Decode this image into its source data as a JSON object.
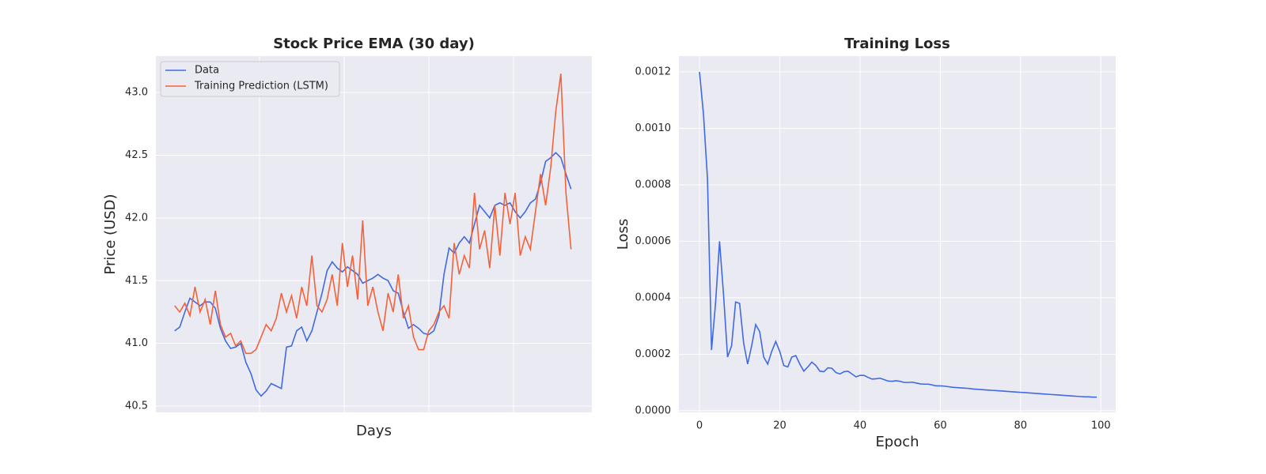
{
  "chart_data": [
    {
      "type": "line",
      "title": "Stock Price EMA (30 day)",
      "xlabel": "Days",
      "ylabel": "Price (USD)",
      "xlim": [
        -3.7,
        82.1
      ],
      "ylim": [
        40.45,
        43.29
      ],
      "yticks": [
        {
          "value": 40.5,
          "label": "40.5"
        },
        {
          "value": 41.0,
          "label": "41.0"
        },
        {
          "value": 41.5,
          "label": "41.5"
        },
        {
          "value": 42.0,
          "label": "42.0"
        },
        {
          "value": 42.5,
          "label": "42.5"
        },
        {
          "value": 43.0,
          "label": "43.0"
        }
      ],
      "grid": true,
      "legend": "upper left",
      "series": [
        {
          "name": "Data",
          "color": "#4169e1",
          "values": [
            41.1,
            41.13,
            41.25,
            41.36,
            41.33,
            41.3,
            41.33,
            41.33,
            41.28,
            41.12,
            41.02,
            40.96,
            40.97,
            41.0,
            40.85,
            40.76,
            40.63,
            40.58,
            40.62,
            40.68,
            40.66,
            40.64,
            40.97,
            40.98,
            41.1,
            41.13,
            41.02,
            41.1,
            41.25,
            41.4,
            41.58,
            41.65,
            41.6,
            41.57,
            41.61,
            41.58,
            41.55,
            41.48,
            41.5,
            41.52,
            41.55,
            41.52,
            41.5,
            41.42,
            41.4,
            41.25,
            41.12,
            41.15,
            41.12,
            41.08,
            41.07,
            41.1,
            41.22,
            41.55,
            41.76,
            41.72,
            41.8,
            41.85,
            41.8,
            41.95,
            42.1,
            42.05,
            42.0,
            42.1,
            42.12,
            42.1,
            42.12,
            42.05,
            42.0,
            42.05,
            42.12,
            42.15,
            42.28,
            42.45,
            42.48,
            42.52,
            42.48,
            42.35,
            42.23
          ]
        },
        {
          "name": "Training Prediction (LSTM)",
          "color": "#f4623a",
          "values": [
            41.3,
            41.25,
            41.32,
            41.22,
            41.45,
            41.25,
            41.35,
            41.15,
            41.42,
            41.15,
            41.05,
            41.08,
            40.98,
            41.02,
            40.92,
            40.92,
            40.95,
            41.05,
            41.15,
            41.1,
            41.2,
            41.4,
            41.25,
            41.38,
            41.2,
            41.45,
            41.3,
            41.7,
            41.3,
            41.25,
            41.35,
            41.55,
            41.3,
            41.8,
            41.45,
            41.7,
            41.35,
            41.98,
            41.3,
            41.45,
            41.25,
            41.1,
            41.4,
            41.25,
            41.55,
            41.2,
            41.3,
            41.05,
            40.95,
            40.95,
            41.1,
            41.15,
            41.25,
            41.3,
            41.2,
            41.8,
            41.55,
            41.7,
            41.6,
            42.2,
            41.75,
            41.9,
            41.6,
            42.1,
            41.7,
            42.2,
            41.95,
            42.2,
            41.7,
            41.85,
            41.75,
            42.05,
            42.35,
            42.1,
            42.4,
            42.85,
            43.15,
            42.2,
            41.75
          ]
        }
      ]
    },
    {
      "type": "line",
      "title": "Training Loss",
      "xlabel": "Epoch",
      "ylabel": "Loss",
      "xlim": [
        -5.13,
        103.7
      ],
      "ylim": [
        -6e-06,
        0.001256
      ],
      "xticks": [
        0,
        20,
        40,
        60,
        80,
        100
      ],
      "yticks": [
        {
          "value": 0,
          "label": "0.0000"
        },
        {
          "value": 0.0002,
          "label": "0.0002"
        },
        {
          "value": 0.0004,
          "label": "0.0004"
        },
        {
          "value": 0.0006,
          "label": "0.0006"
        },
        {
          "value": 0.0008,
          "label": "0.0008"
        },
        {
          "value": 0.001,
          "label": "0.0010"
        },
        {
          "value": 0.0012,
          "label": "0.0012"
        }
      ],
      "grid": true,
      "series": [
        {
          "color": "#4169e1",
          "values": [
            0.0012,
            0.00105,
            0.00082,
            0.000215,
            0.00038,
            0.0006,
            0.00041,
            0.00019,
            0.00023,
            0.000385,
            0.00038,
            0.00024,
            0.000165,
            0.00023,
            0.000305,
            0.00028,
            0.00019,
            0.000165,
            0.00021,
            0.000245,
            0.00021,
            0.00016,
            0.000155,
            0.00019,
            0.000195,
            0.000165,
            0.00014,
            0.000155,
            0.000172,
            0.00016,
            0.00014,
            0.000138,
            0.000152,
            0.00015,
            0.000135,
            0.00013,
            0.000138,
            0.00014,
            0.00013,
            0.00012,
            0.000125,
            0.000125,
            0.000118,
            0.000112,
            0.000113,
            0.000115,
            0.00011,
            0.000105,
            0.000104,
            0.000106,
            0.000104,
            0.0001,
            0.0001,
            0.000101,
            9.8e-05,
            9.5e-05,
            9.4e-05,
            9.4e-05,
            9.1e-05,
            8.8e-05,
            8.8e-05,
            8.7e-05,
            8.5e-05,
            8.3e-05,
            8.2e-05,
            8.1e-05,
            8e-05,
            7.9e-05,
            7.7e-05,
            7.6e-05,
            7.5e-05,
            7.4e-05,
            7.3e-05,
            7.2e-05,
            7.1e-05,
            7e-05,
            6.9e-05,
            6.8e-05,
            6.7e-05,
            6.6e-05,
            6.5e-05,
            6.4e-05,
            6.3e-05,
            6.2e-05,
            6.1e-05,
            6e-05,
            5.9e-05,
            5.8e-05,
            5.7e-05,
            5.6e-05,
            5.5e-05,
            5.4e-05,
            5.3e-05,
            5.2e-05,
            5.1e-05,
            5e-05,
            4.9e-05,
            4.9e-05,
            4.8e-05,
            4.8e-05
          ]
        }
      ]
    }
  ]
}
